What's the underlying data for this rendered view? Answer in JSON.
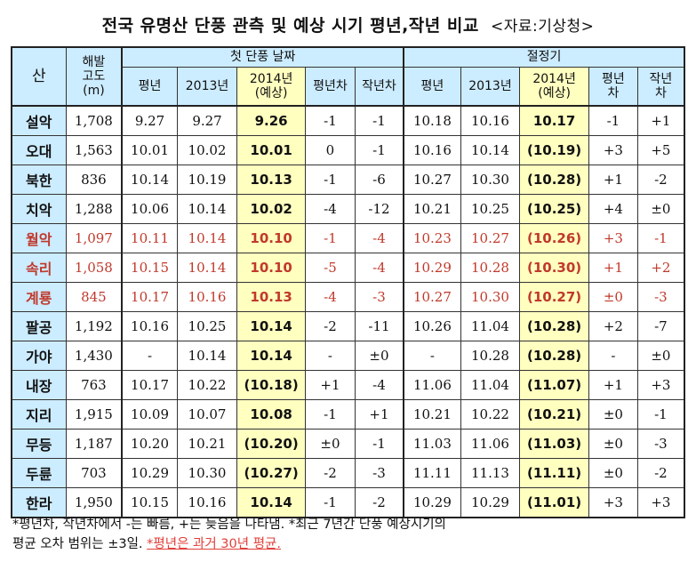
{
  "title": "전국 유명산 단풍 관측 및 예상 시기 평년,작년 비교",
  "source": "<자료:기상청>",
  "header": {
    "mountain": "산",
    "altitude": [
      "해발",
      "고도",
      "(m)"
    ],
    "first_foliage": "첫 단풍 날짜",
    "peak": "절정기",
    "first_cols": [
      {
        "lines": [
          "평년"
        ]
      },
      {
        "lines": [
          "2013년"
        ]
      },
      {
        "lines": [
          "2014년",
          "(예상)"
        ]
      },
      {
        "lines": [
          "평년차"
        ]
      },
      {
        "lines": [
          "작년차"
        ]
      }
    ],
    "peak_cols": [
      {
        "lines": [
          "평년"
        ]
      },
      {
        "lines": [
          "2013년"
        ]
      },
      {
        "lines": [
          "2014년",
          "(예상)"
        ]
      },
      {
        "lines": [
          "평년",
          "차"
        ]
      },
      {
        "lines": [
          "작년",
          "차"
        ]
      }
    ]
  },
  "rows": [
    {
      "name": "설악",
      "alt": "1,708",
      "f_avg": "9.27",
      "f_2013": "9.27",
      "f_2014": "9.26",
      "f_diff_avg": "-1",
      "f_diff_last": "-1",
      "p_avg": "10.18",
      "p_2013": "10.16",
      "p_2014": "10.17",
      "p_diff_avg": "-1",
      "p_diff_last": "+1",
      "red": false
    },
    {
      "name": "오대",
      "alt": "1,563",
      "f_avg": "10.01",
      "f_2013": "10.02",
      "f_2014": "10.01",
      "f_diff_avg": "0",
      "f_diff_last": "-1",
      "p_avg": "10.16",
      "p_2013": "10.14",
      "p_2014": "(10.19)",
      "p_diff_avg": "+3",
      "p_diff_last": "+5",
      "red": false
    },
    {
      "name": "북한",
      "alt": "836",
      "f_avg": "10.14",
      "f_2013": "10.19",
      "f_2014": "10.13",
      "f_diff_avg": "-1",
      "f_diff_last": "-6",
      "p_avg": "10.27",
      "p_2013": "10.30",
      "p_2014": "(10.28)",
      "p_diff_avg": "+1",
      "p_diff_last": "-2",
      "red": false
    },
    {
      "name": "치악",
      "alt": "1,288",
      "f_avg": "10.06",
      "f_2013": "10.14",
      "f_2014": "10.02",
      "f_diff_avg": "-4",
      "f_diff_last": "-12",
      "p_avg": "10.21",
      "p_2013": "10.25",
      "p_2014": "(10.25)",
      "p_diff_avg": "+4",
      "p_diff_last": "±0",
      "red": false
    },
    {
      "name": "월악",
      "alt": "1,097",
      "f_avg": "10.11",
      "f_2013": "10.14",
      "f_2014": "10.10",
      "f_diff_avg": "-1",
      "f_diff_last": "-4",
      "p_avg": "10.23",
      "p_2013": "10.27",
      "p_2014": "(10.26)",
      "p_diff_avg": "+3",
      "p_diff_last": "-1",
      "red": true
    },
    {
      "name": "속리",
      "alt": "1,058",
      "f_avg": "10.15",
      "f_2013": "10.14",
      "f_2014": "10.10",
      "f_diff_avg": "-5",
      "f_diff_last": "-4",
      "p_avg": "10.29",
      "p_2013": "10.28",
      "p_2014": "(10.30)",
      "p_diff_avg": "+1",
      "p_diff_last": "+2",
      "red": true
    },
    {
      "name": "계룡",
      "alt": "845",
      "f_avg": "10.17",
      "f_2013": "10.16",
      "f_2014": "10.13",
      "f_diff_avg": "-4",
      "f_diff_last": "-3",
      "p_avg": "10.27",
      "p_2013": "10.30",
      "p_2014": "(10.27)",
      "p_diff_avg": "±0",
      "p_diff_last": "-3",
      "red": true
    },
    {
      "name": "팔공",
      "alt": "1,192",
      "f_avg": "10.16",
      "f_2013": "10.25",
      "f_2014": "10.14",
      "f_diff_avg": "-2",
      "f_diff_last": "-11",
      "p_avg": "10.26",
      "p_2013": "11.04",
      "p_2014": "(10.28)",
      "p_diff_avg": "+2",
      "p_diff_last": "-7",
      "red": false
    },
    {
      "name": "가야",
      "alt": "1,430",
      "f_avg": "-",
      "f_2013": "10.14",
      "f_2014": "10.14",
      "f_diff_avg": "-",
      "f_diff_last": "±0",
      "p_avg": "-",
      "p_2013": "10.28",
      "p_2014": "(10.28)",
      "p_diff_avg": "-",
      "p_diff_last": "±0",
      "red": false
    },
    {
      "name": "내장",
      "alt": "763",
      "f_avg": "10.17",
      "f_2013": "10.22",
      "f_2014": "(10.18)",
      "f_diff_avg": "+1",
      "f_diff_last": "-4",
      "p_avg": "11.06",
      "p_2013": "11.04",
      "p_2014": "(11.07)",
      "p_diff_avg": "+1",
      "p_diff_last": "+3",
      "red": false
    },
    {
      "name": "지리",
      "alt": "1,915",
      "f_avg": "10.09",
      "f_2013": "10.07",
      "f_2014": "10.08",
      "f_diff_avg": "-1",
      "f_diff_last": "+1",
      "p_avg": "10.21",
      "p_2013": "10.22",
      "p_2014": "(10.21)",
      "p_diff_avg": "±0",
      "p_diff_last": "-1",
      "red": false
    },
    {
      "name": "무등",
      "alt": "1,187",
      "f_avg": "10.20",
      "f_2013": "10.21",
      "f_2014": "(10.20)",
      "f_diff_avg": "±0",
      "f_diff_last": "-1",
      "p_avg": "11.03",
      "p_2013": "11.06",
      "p_2014": "(11.03)",
      "p_diff_avg": "±0",
      "p_diff_last": "-3",
      "red": false
    },
    {
      "name": "두륜",
      "alt": "703",
      "f_avg": "10.29",
      "f_2013": "10.30",
      "f_2014": "(10.27)",
      "f_diff_avg": "-2",
      "f_diff_last": "-3",
      "p_avg": "11.11",
      "p_2013": "11.13",
      "p_2014": "(11.11)",
      "p_diff_avg": "±0",
      "p_diff_last": "-2",
      "red": false
    },
    {
      "name": "한라",
      "alt": "1,950",
      "f_avg": "10.15",
      "f_2013": "10.16",
      "f_2014": "10.14",
      "f_diff_avg": "-1",
      "f_diff_last": "-2",
      "p_avg": "10.29",
      "p_2013": "10.29",
      "p_2014": "(11.01)",
      "p_diff_avg": "+3",
      "p_diff_last": "+3",
      "red": false
    }
  ],
  "footnote1": "*평년차, 작년차에서 -는 빠름, +는 늦음을 나타냄. *최근 7년간 단풍 예상시기의",
  "footnote2_a": "평균 오차 범위는 ±3일.",
  "footnote2_b": "*평년은 과거 30년 평균.",
  "colors": {
    "header_bg": "#ccecff",
    "highlight_bg": "#ffffc0",
    "red_row": "#c0392b"
  }
}
